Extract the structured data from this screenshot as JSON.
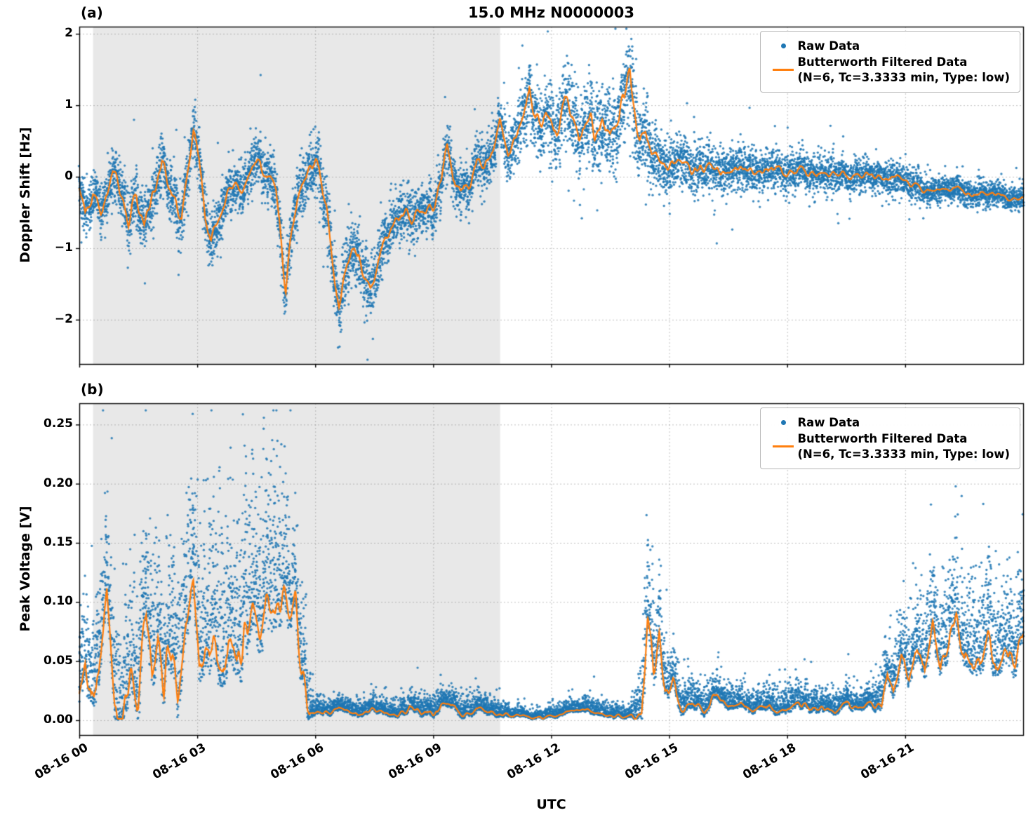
{
  "title": "15.0 MHz N0000003",
  "panel_a": {
    "label": "(a)",
    "ylabel": "Doppler Shift [Hz]"
  },
  "panel_b": {
    "label": "(b)",
    "ylabel": "Peak Voltage [V]"
  },
  "xlabel": "UTC",
  "legend": {
    "raw": "Raw Data",
    "filtered_line1": "Butterworth Filtered Data",
    "filtered_line2": "(N=6, Tc=3.3333 min, Type: low)"
  },
  "colors": {
    "raw": "#1f77b4",
    "filtered": "#ff7f0e",
    "shade": "#e8e8e8",
    "grid": "#9a9a9a"
  },
  "x_axis": {
    "label": "UTC",
    "range_hours": [
      0,
      24
    ],
    "tick_hours": [
      0,
      3,
      6,
      9,
      12,
      15,
      18,
      21
    ],
    "tick_labels": [
      "08-16 00",
      "08-16 03",
      "08-16 06",
      "08-16 09",
      "08-16 12",
      "08-16 15",
      "08-16 18",
      "08-16 21"
    ]
  },
  "chart_data": [
    {
      "type": "scatter",
      "panel": "a",
      "title": "15.0 MHz N0000003",
      "ylabel": "Doppler Shift [Hz]",
      "ylim": [
        -2.62,
        2.1
      ],
      "yticks": [
        -2,
        -1,
        0,
        1,
        2
      ],
      "ytick_labels": [
        "−2",
        "−1",
        "0",
        "1",
        "2"
      ],
      "shaded_region_hours": [
        0.35,
        10.7
      ],
      "series": [
        {
          "name": "Raw Data",
          "style": "scatter",
          "color": "#1f77b4"
        },
        {
          "name": "Butterworth Filtered Data (N=6, Tc=3.3333 min, Type: low)",
          "style": "line",
          "color": "#ff7f0e"
        }
      ],
      "filtered_keypoints_hours_value": [
        [
          0,
          -0.2
        ],
        [
          0.15,
          -0.6
        ],
        [
          0.35,
          -0.2
        ],
        [
          0.55,
          -0.5
        ],
        [
          0.85,
          0
        ],
        [
          1,
          -0.1
        ],
        [
          1.25,
          -0.65
        ],
        [
          1.45,
          -0.3
        ],
        [
          1.65,
          -0.7
        ],
        [
          1.9,
          -0.2
        ],
        [
          2.1,
          0.3
        ],
        [
          2.35,
          -0.25
        ],
        [
          2.6,
          -0.6
        ],
        [
          2.75,
          0
        ],
        [
          2.9,
          0.6
        ],
        [
          3.05,
          0.2
        ],
        [
          3.2,
          -0.5
        ],
        [
          3.35,
          -0.95
        ],
        [
          3.55,
          -0.6
        ],
        [
          3.75,
          -0.2
        ],
        [
          3.95,
          -0.1
        ],
        [
          4.15,
          -0.2
        ],
        [
          4.4,
          0.1
        ],
        [
          4.6,
          0.15
        ],
        [
          4.8,
          -0.05
        ],
        [
          5,
          -0.2
        ],
        [
          5.15,
          -1
        ],
        [
          5.25,
          -1.55
        ],
        [
          5.4,
          -0.8
        ],
        [
          5.55,
          -0.3
        ],
        [
          5.75,
          -0.05
        ],
        [
          5.95,
          0.2
        ],
        [
          6.1,
          0.1
        ],
        [
          6.3,
          -0.5
        ],
        [
          6.45,
          -1.3
        ],
        [
          6.6,
          -1.8
        ],
        [
          6.75,
          -1.4
        ],
        [
          6.9,
          -1.05
        ],
        [
          7.1,
          -1.1
        ],
        [
          7.3,
          -1.5
        ],
        [
          7.4,
          -1.65
        ],
        [
          7.6,
          -1.2
        ],
        [
          7.8,
          -0.85
        ],
        [
          8,
          -0.65
        ],
        [
          8.2,
          -0.5
        ],
        [
          8.45,
          -0.6
        ],
        [
          8.7,
          -0.5
        ],
        [
          9,
          -0.4
        ],
        [
          9.2,
          -0.1
        ],
        [
          9.35,
          0.45
        ],
        [
          9.5,
          0
        ],
        [
          9.7,
          -0.15
        ],
        [
          9.9,
          -0.1
        ],
        [
          10.1,
          0.25
        ],
        [
          10.3,
          0.1
        ],
        [
          10.5,
          0.3
        ],
        [
          10.7,
          0.75
        ],
        [
          10.9,
          0.3
        ],
        [
          11.1,
          0.5
        ],
        [
          11.3,
          0.9
        ],
        [
          11.45,
          1.3
        ],
        [
          11.6,
          0.8
        ],
        [
          11.8,
          0.75
        ],
        [
          12,
          0.9
        ],
        [
          12.15,
          0.7
        ],
        [
          12.35,
          1.1
        ],
        [
          12.5,
          0.9
        ],
        [
          12.7,
          0.6
        ],
        [
          12.9,
          0.85
        ],
        [
          13.1,
          0.6
        ],
        [
          13.3,
          0.75
        ],
        [
          13.5,
          0.6
        ],
        [
          13.7,
          0.9
        ],
        [
          13.85,
          1.1
        ],
        [
          14,
          1.6
        ],
        [
          14.1,
          1.1
        ],
        [
          14.25,
          0.5
        ],
        [
          14.4,
          0.65
        ],
        [
          14.55,
          0.3
        ],
        [
          14.75,
          0.2
        ],
        [
          15,
          0.1
        ],
        [
          15.3,
          0.2
        ],
        [
          15.6,
          0.1
        ],
        [
          16,
          0.15
        ],
        [
          16.4,
          0.05
        ],
        [
          16.8,
          0.15
        ],
        [
          17.2,
          0.05
        ],
        [
          17.6,
          0.1
        ],
        [
          18,
          0.05
        ],
        [
          18.4,
          0.1
        ],
        [
          18.8,
          0
        ],
        [
          19.2,
          0.05
        ],
        [
          19.6,
          0
        ],
        [
          20,
          0.05
        ],
        [
          20.4,
          -0.05
        ],
        [
          20.8,
          0
        ],
        [
          21.2,
          -0.1
        ],
        [
          21.6,
          -0.15
        ],
        [
          22,
          -0.2
        ],
        [
          22.4,
          -0.2
        ],
        [
          22.8,
          -0.25
        ],
        [
          23.2,
          -0.25
        ],
        [
          23.6,
          -0.3
        ],
        [
          24,
          -0.3
        ]
      ],
      "raw_scatter_spread_keypoints": [
        [
          0,
          0.22
        ],
        [
          1,
          0.22
        ],
        [
          2,
          0.24
        ],
        [
          3,
          0.24
        ],
        [
          4,
          0.2
        ],
        [
          5,
          0.22
        ],
        [
          6,
          0.25
        ],
        [
          7,
          0.28
        ],
        [
          8,
          0.22
        ],
        [
          9,
          0.2
        ],
        [
          10,
          0.2
        ],
        [
          10.8,
          0.22
        ],
        [
          11.5,
          0.28
        ],
        [
          12,
          0.3
        ],
        [
          12.8,
          0.33
        ],
        [
          13.5,
          0.35
        ],
        [
          14,
          0.33
        ],
        [
          14.5,
          0.28
        ],
        [
          15,
          0.22
        ],
        [
          16,
          0.2
        ],
        [
          17,
          0.18
        ],
        [
          18,
          0.16
        ],
        [
          19,
          0.15
        ],
        [
          20,
          0.13
        ],
        [
          21,
          0.13
        ],
        [
          22,
          0.11
        ],
        [
          23,
          0.11
        ],
        [
          24,
          0.1
        ]
      ]
    },
    {
      "type": "scatter",
      "panel": "b",
      "ylabel": "Peak Voltage [V]",
      "ylim": [
        -0.0125,
        0.268
      ],
      "yticks": [
        0,
        0.05,
        0.1,
        0.15,
        0.2,
        0.25
      ],
      "ytick_labels": [
        "0.00",
        "0.05",
        "0.10",
        "0.15",
        "0.20",
        "0.25"
      ],
      "shaded_region_hours": [
        0.35,
        10.7
      ],
      "series": [
        {
          "name": "Raw Data",
          "style": "scatter",
          "color": "#1f77b4"
        },
        {
          "name": "Butterworth Filtered Data (N=6, Tc=3.3333 min, Type: low)",
          "style": "line",
          "color": "#ff7f0e"
        }
      ],
      "filtered_keypoints_hours_value": [
        [
          0,
          0.02
        ],
        [
          0.15,
          0.05
        ],
        [
          0.3,
          0.015
        ],
        [
          0.5,
          0.04
        ],
        [
          0.7,
          0.105
        ],
        [
          0.9,
          0.02
        ],
        [
          1.1,
          0.01
        ],
        [
          1.3,
          0.03
        ],
        [
          1.5,
          0.02
        ],
        [
          1.7,
          0.09
        ],
        [
          1.85,
          0.03
        ],
        [
          2,
          0.07
        ],
        [
          2.15,
          0.02
        ],
        [
          2.3,
          0.065
        ],
        [
          2.5,
          0.02
        ],
        [
          2.7,
          0.08
        ],
        [
          2.9,
          0.125
        ],
        [
          3.05,
          0.04
        ],
        [
          3.2,
          0.06
        ],
        [
          3.4,
          0.05
        ],
        [
          3.6,
          0.045
        ],
        [
          3.8,
          0.06
        ],
        [
          4,
          0.05
        ],
        [
          4.2,
          0.085
        ],
        [
          4.4,
          0.095
        ],
        [
          4.6,
          0.08
        ],
        [
          4.8,
          0.1
        ],
        [
          5,
          0.09
        ],
        [
          5.2,
          0.1
        ],
        [
          5.5,
          0.1
        ],
        [
          5.65,
          0.04
        ],
        [
          5.8,
          0.01
        ],
        [
          6,
          0.006
        ],
        [
          6.3,
          0.005
        ],
        [
          6.6,
          0.012
        ],
        [
          6.9,
          0.006
        ],
        [
          7.2,
          0.005
        ],
        [
          7.5,
          0.01
        ],
        [
          7.8,
          0.006
        ],
        [
          8.1,
          0.005
        ],
        [
          8.4,
          0.012
        ],
        [
          8.7,
          0.006
        ],
        [
          9,
          0.005
        ],
        [
          9.3,
          0.015
        ],
        [
          9.5,
          0.008
        ],
        [
          9.8,
          0.005
        ],
        [
          10.1,
          0.01
        ],
        [
          10.4,
          0.006
        ],
        [
          10.7,
          0.005
        ],
        [
          11,
          0.004
        ],
        [
          11.3,
          0.003
        ],
        [
          11.6,
          0.002
        ],
        [
          12,
          0.003
        ],
        [
          12.3,
          0.005
        ],
        [
          12.6,
          0.008
        ],
        [
          12.9,
          0.01
        ],
        [
          13.1,
          0.006
        ],
        [
          13.4,
          0.004
        ],
        [
          13.7,
          0.003
        ],
        [
          14,
          0.003
        ],
        [
          14.3,
          0.004
        ],
        [
          14.45,
          0.09
        ],
        [
          14.6,
          0.04
        ],
        [
          14.75,
          0.075
        ],
        [
          14.9,
          0.02
        ],
        [
          15.1,
          0.03
        ],
        [
          15.3,
          0.01
        ],
        [
          15.6,
          0.015
        ],
        [
          15.9,
          0.008
        ],
        [
          16.2,
          0.02
        ],
        [
          16.5,
          0.01
        ],
        [
          16.8,
          0.015
        ],
        [
          17.1,
          0.008
        ],
        [
          17.4,
          0.012
        ],
        [
          17.7,
          0.01
        ],
        [
          18,
          0.008
        ],
        [
          18.3,
          0.015
        ],
        [
          18.6,
          0.01
        ],
        [
          18.9,
          0.012
        ],
        [
          19.2,
          0.008
        ],
        [
          19.5,
          0.015
        ],
        [
          19.8,
          0.01
        ],
        [
          20.1,
          0.012
        ],
        [
          20.4,
          0.01
        ],
        [
          20.55,
          0.04
        ],
        [
          20.7,
          0.02
        ],
        [
          20.9,
          0.05
        ],
        [
          21.1,
          0.03
        ],
        [
          21.3,
          0.06
        ],
        [
          21.5,
          0.04
        ],
        [
          21.7,
          0.085
        ],
        [
          21.9,
          0.045
        ],
        [
          22.1,
          0.06
        ],
        [
          22.3,
          0.085
        ],
        [
          22.5,
          0.05
        ],
        [
          22.7,
          0.06
        ],
        [
          22.9,
          0.04
        ],
        [
          23.1,
          0.07
        ],
        [
          23.3,
          0.045
        ],
        [
          23.5,
          0.06
        ],
        [
          23.7,
          0.05
        ],
        [
          24,
          0.07
        ]
      ],
      "raw_scatter_spread_keypoints": [
        [
          0,
          0.03
        ],
        [
          1,
          0.04
        ],
        [
          2,
          0.05
        ],
        [
          3,
          0.05
        ],
        [
          4,
          0.06
        ],
        [
          5,
          0.06
        ],
        [
          5.7,
          0.03
        ],
        [
          6,
          0.006
        ],
        [
          7,
          0.006
        ],
        [
          8,
          0.006
        ],
        [
          9,
          0.008
        ],
        [
          10,
          0.008
        ],
        [
          10.8,
          0.006
        ],
        [
          11,
          0.003
        ],
        [
          12,
          0.004
        ],
        [
          13,
          0.006
        ],
        [
          14,
          0.004
        ],
        [
          14.5,
          0.04
        ],
        [
          15,
          0.015
        ],
        [
          16,
          0.01
        ],
        [
          17,
          0.008
        ],
        [
          18,
          0.01
        ],
        [
          19,
          0.008
        ],
        [
          20,
          0.008
        ],
        [
          20.8,
          0.02
        ],
        [
          21.5,
          0.03
        ],
        [
          22,
          0.03
        ],
        [
          23,
          0.035
        ],
        [
          24,
          0.03
        ]
      ]
    }
  ]
}
